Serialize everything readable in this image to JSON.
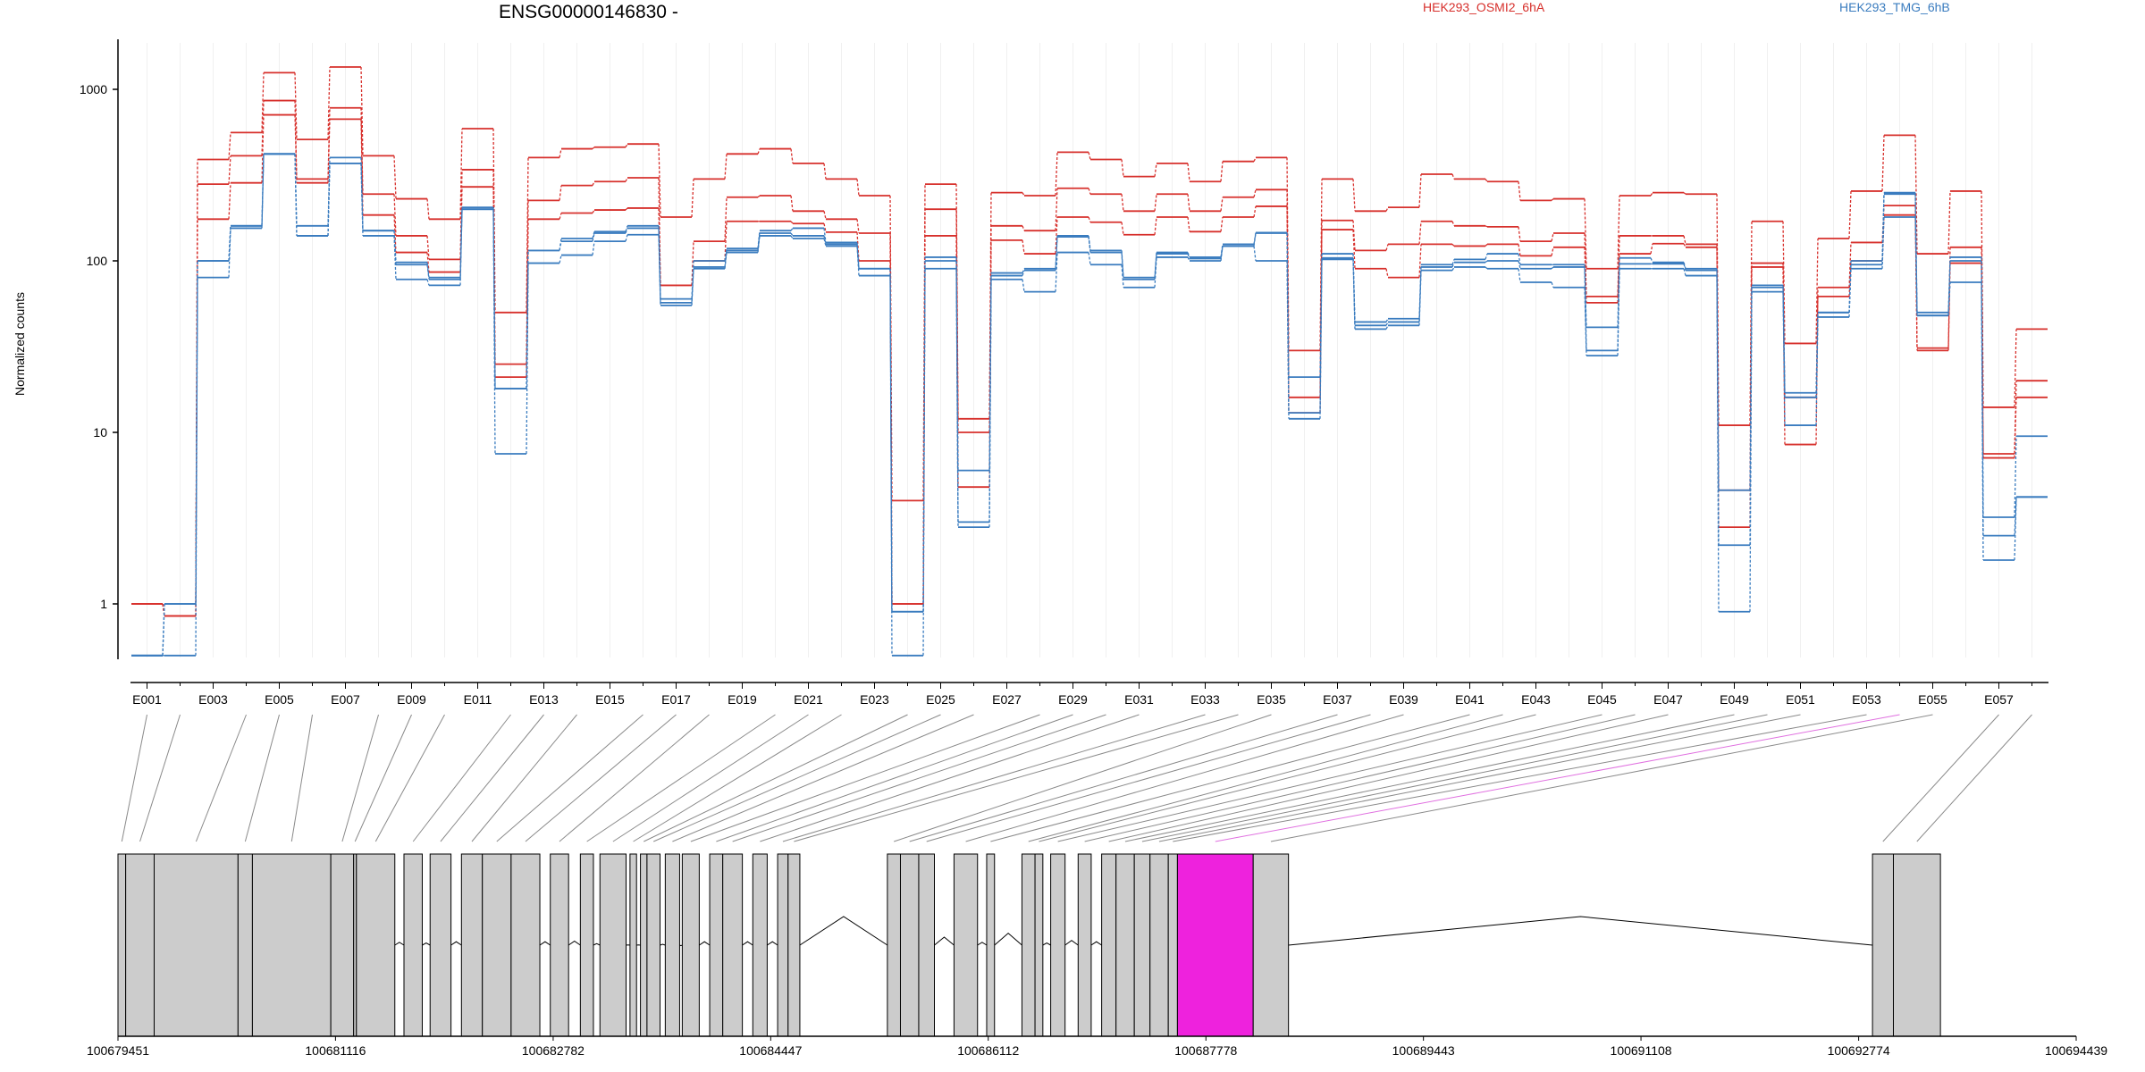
{
  "chart_data": {
    "type": "line",
    "title": "ENSG00000146830 -",
    "ylabel": "Normalized counts",
    "xlabel": "",
    "yscale": "log",
    "yticks": [
      "1",
      "10",
      "100",
      "1000"
    ],
    "ylim": [
      0.5,
      2000
    ],
    "legend": [
      {
        "label": "HEK293_OSMI2_6hA",
        "color": "#d7302c"
      },
      {
        "label": "HEK293_TMG_6hB",
        "color": "#3a7cbf"
      }
    ],
    "exons": [
      "E001",
      "E002",
      "E003",
      "E004",
      "E005",
      "E006",
      "E007",
      "E008",
      "E009",
      "E010",
      "E011",
      "E012",
      "E013",
      "E014",
      "E015",
      "E016",
      "E017",
      "E018",
      "E019",
      "E020",
      "E021",
      "E022",
      "E023",
      "E024",
      "E025",
      "E026",
      "E027",
      "E028",
      "E029",
      "E030",
      "E031",
      "E032",
      "E033",
      "E034",
      "E035",
      "E036",
      "E037",
      "E038",
      "E039",
      "E040",
      "E041",
      "E042",
      "E043",
      "E044",
      "E045",
      "E046",
      "E047",
      "E048",
      "E049",
      "E050",
      "E051",
      "E052",
      "E053",
      "E054",
      "E055",
      "E056",
      "E057",
      "E058"
    ],
    "exon_tick_labels": [
      "E001",
      "E003",
      "E005",
      "E007",
      "E009",
      "E011",
      "E013",
      "E015",
      "E017",
      "E019",
      "E021",
      "E023",
      "E025",
      "E027",
      "E029",
      "E031",
      "E033",
      "E035",
      "E037",
      "E039",
      "E041",
      "E043",
      "E045",
      "E047",
      "E049",
      "E051",
      "E053",
      "E055",
      "E057"
    ],
    "series": [
      {
        "group": "HEK293_OSMI2_6hA",
        "color": "#d7302c",
        "values": [
          1,
          0.85,
          390,
          560,
          1250,
          510,
          1350,
          410,
          230,
          175,
          590,
          50,
          400,
          450,
          460,
          480,
          180,
          300,
          420,
          450,
          370,
          300,
          240,
          4,
          280,
          12,
          250,
          240,
          430,
          390,
          310,
          370,
          290,
          380,
          400,
          30,
          300,
          195,
          205,
          320,
          300,
          290,
          225,
          230,
          90,
          240,
          250,
          245,
          11,
          170,
          33,
          135,
          255,
          540,
          110,
          255,
          14,
          40
        ]
      },
      {
        "group": "HEK293_OSMI2_6hA",
        "color": "#d7302c",
        "values": [
          1,
          0.85,
          280,
          410,
          860,
          300,
          780,
          245,
          140,
          102,
          340,
          25,
          225,
          275,
          290,
          305,
          72,
          130,
          235,
          240,
          195,
          175,
          145,
          1,
          200,
          10,
          160,
          150,
          265,
          245,
          195,
          245,
          195,
          235,
          260,
          16,
          172,
          115,
          125,
          170,
          160,
          158,
          130,
          145,
          62,
          140,
          140,
          125,
          2.8,
          97,
          8.5,
          70,
          128,
          210,
          31,
          120,
          7.5,
          20
        ]
      },
      {
        "group": "HEK293_OSMI2_6hA",
        "color": "#d7302c",
        "values": [
          1,
          0.85,
          175,
          285,
          710,
          285,
          670,
          185,
          112,
          86,
          270,
          21,
          175,
          190,
          198,
          203,
          72,
          100,
          170,
          170,
          165,
          147,
          100,
          1,
          140,
          4.8,
          132,
          110,
          180,
          168,
          142,
          180,
          148,
          180,
          208,
          13,
          152,
          90,
          80,
          125,
          122,
          125,
          107,
          120,
          57,
          110,
          126,
          120,
          4.6,
          92,
          16,
          62,
          100,
          185,
          30,
          97,
          7.1,
          16
        ]
      },
      {
        "group": "HEK293_TMG_6hB",
        "color": "#3a7cbf",
        "values": [
          0.5,
          1,
          100,
          160,
          420,
          160,
          400,
          150,
          98,
          80,
          205,
          18,
          115,
          135,
          148,
          160,
          60,
          100,
          118,
          150,
          155,
          128,
          90,
          0.9,
          105,
          6,
          85,
          90,
          140,
          115,
          80,
          112,
          105,
          125,
          146,
          21,
          110,
          44,
          46,
          95,
          102,
          110,
          95,
          95,
          41,
          104,
          98,
          90,
          4.6,
          72,
          17,
          50,
          100,
          245,
          50,
          105,
          3.2,
          9.5
        ]
      },
      {
        "group": "HEK293_TMG_6hB",
        "color": "#3a7cbf",
        "values": [
          0.5,
          1,
          100,
          160,
          420,
          140,
          370,
          150,
          95,
          78,
          200,
          18,
          115,
          130,
          145,
          155,
          57,
          92,
          115,
          145,
          140,
          125,
          90,
          0.9,
          100,
          3,
          82,
          88,
          138,
          112,
          78,
          110,
          103,
          122,
          145,
          13,
          104,
          42,
          44,
          92,
          98,
          100,
          90,
          92,
          30,
          96,
          96,
          88,
          2.2,
          70,
          16,
          50,
          95,
          250,
          48,
          100,
          2.5,
          4.2
        ]
      },
      {
        "group": "HEK293_TMG_6hB",
        "color": "#3a7cbf",
        "values": [
          0.5,
          0.5,
          80,
          155,
          420,
          140,
          370,
          140,
          78,
          72,
          200,
          7.5,
          97,
          108,
          130,
          142,
          55,
          90,
          112,
          140,
          135,
          122,
          82,
          0.5,
          90,
          2.8,
          78,
          66,
          112,
          95,
          70,
          105,
          100,
          122,
          100,
          12,
          102,
          40,
          42,
          88,
          92,
          90,
          75,
          70,
          28,
          90,
          90,
          82,
          0.9,
          66,
          11,
          47,
          90,
          180,
          48,
          75,
          1.8,
          4.2
        ]
      }
    ],
    "gene_model": {
      "coordinate_labels": [
        "100679451",
        "100681116",
        "100682782",
        "100684447",
        "100686112",
        "100687778",
        "100689443",
        "100691108",
        "100692774",
        "100694439"
      ],
      "coordinate_range": [
        100679451,
        100694439
      ],
      "exons_genomic": [
        [
          100679451,
          100679510
        ],
        [
          100679510,
          100679728
        ],
        [
          100679728,
          100680370
        ],
        [
          100680370,
          100680480
        ],
        [
          100680480,
          100681080
        ],
        [
          100681080,
          100681255
        ],
        [
          100681255,
          100681276
        ],
        [
          100681276,
          100681570
        ],
        [
          100681640,
          100681780
        ],
        [
          100681840,
          100682000
        ],
        [
          100682080,
          100682240
        ],
        [
          100682240,
          100682460
        ],
        [
          100682460,
          100682680
        ],
        [
          100682760,
          100682900
        ],
        [
          100682990,
          100683090
        ],
        [
          100683140,
          100683340
        ],
        [
          100683370,
          100683420
        ],
        [
          100683450,
          100683500
        ],
        [
          100683500,
          100683600
        ],
        [
          100683640,
          100683750
        ],
        [
          100683770,
          100683900
        ],
        [
          100683980,
          100684080
        ],
        [
          100684080,
          100684230
        ],
        [
          100684310,
          100684420
        ],
        [
          100684500,
          100684580
        ],
        [
          100684580,
          100684670
        ],
        [
          100685340,
          100685440
        ],
        [
          100685440,
          100685580
        ],
        [
          100685580,
          100685700
        ],
        [
          100685850,
          100686030
        ],
        [
          100686100,
          100686160
        ],
        [
          100686370,
          100686470
        ],
        [
          100686470,
          100686530
        ],
        [
          100686590,
          100686700
        ],
        [
          100686800,
          100686900
        ],
        [
          100686980,
          100687090
        ],
        [
          100687090,
          100687230
        ],
        [
          100687230,
          100687350
        ],
        [
          100687350,
          100687490
        ],
        [
          100687490,
          100687560
        ],
        [
          100687560,
          100688140
        ],
        [
          100688140,
          100688410
        ],
        [
          100692880,
          100693040
        ],
        [
          100693040,
          100693400
        ]
      ],
      "highlight_color": "#ee22dd",
      "highlight_exon_index": 40
    }
  }
}
